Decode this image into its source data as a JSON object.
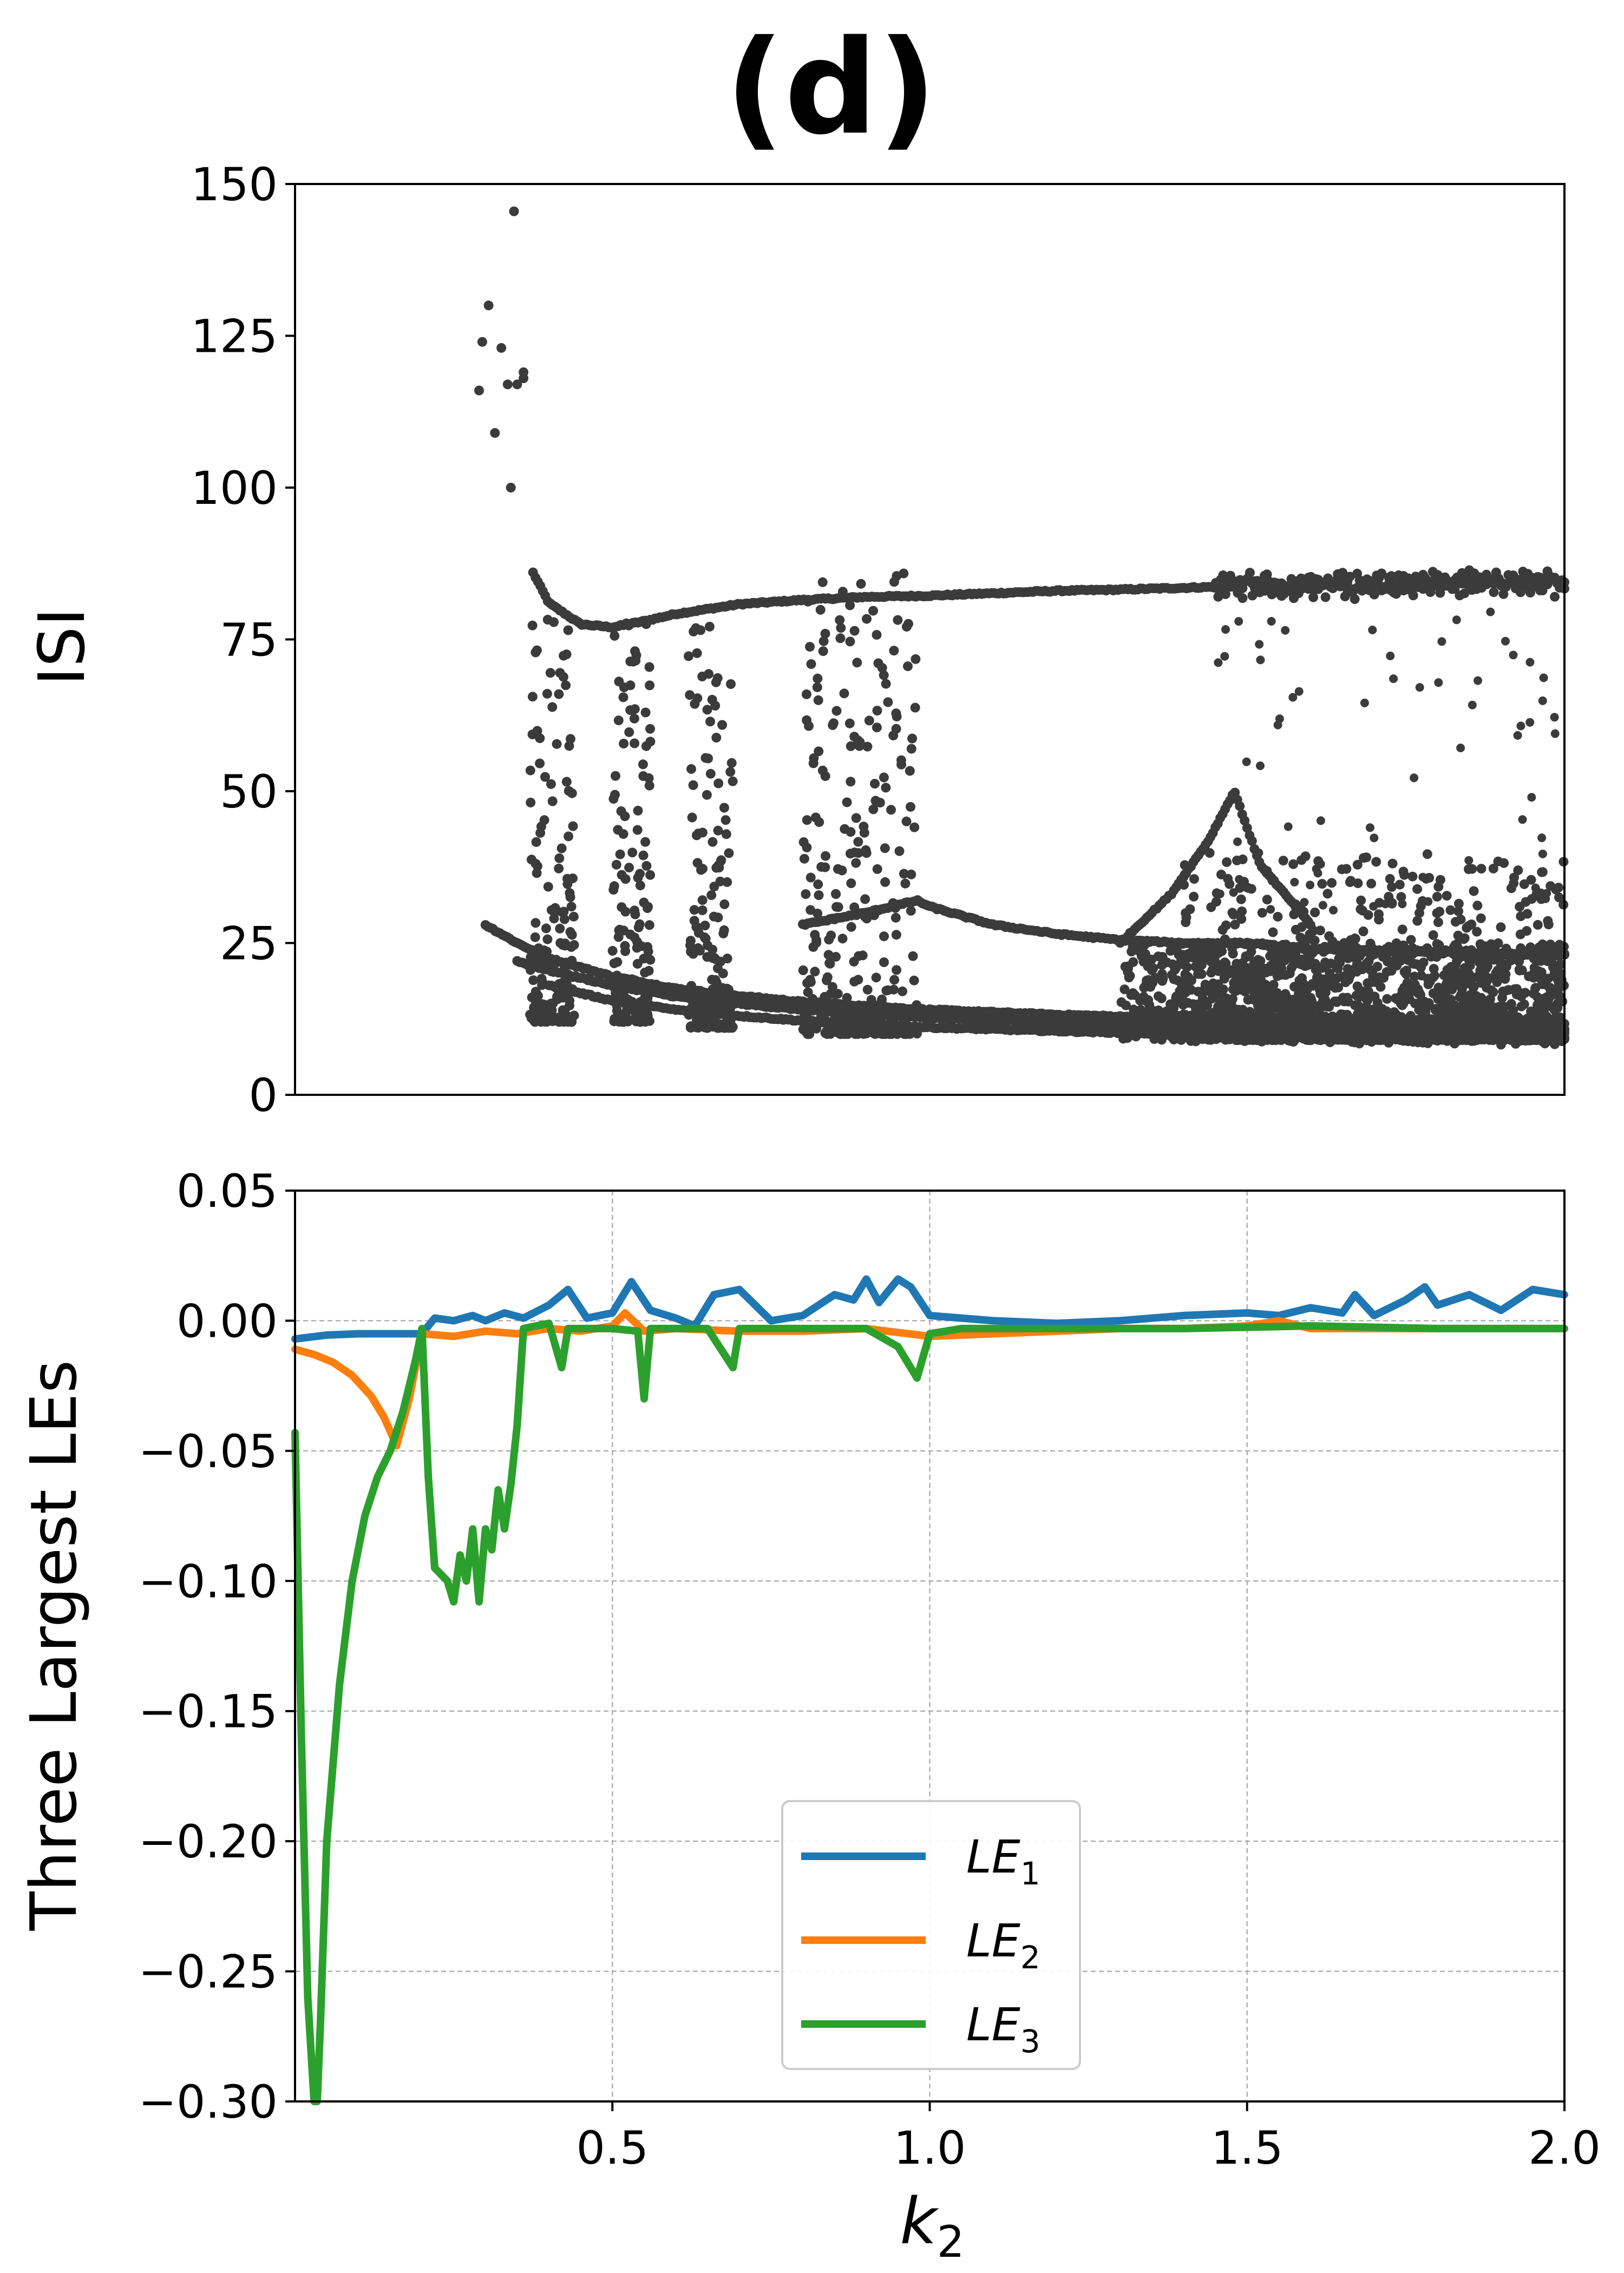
{
  "title": "(d)",
  "colors": {
    "le1": "#1f77b4",
    "le2": "#ff7f0e",
    "le3": "#2ca02c",
    "dots": "#3b3b3b",
    "grid": "#b0b0b0"
  },
  "chart_data": [
    {
      "type": "scatter",
      "ylabel": "ISI",
      "xlim": [
        0.0,
        2.0
      ],
      "ylim": [
        0,
        150
      ],
      "yticks": [
        "0",
        "25",
        "50",
        "75",
        "100",
        "125",
        "150"
      ],
      "grid": false,
      "branches": [
        {
          "name": "upper",
          "x": [
            0.375,
            0.4,
            0.45,
            0.5,
            0.55,
            0.6,
            0.65,
            0.7,
            0.8,
            0.9,
            1.0,
            1.1,
            1.2,
            1.3,
            1.4,
            1.5,
            1.6,
            1.7,
            1.8,
            1.9,
            2.0
          ],
          "y": [
            86,
            81,
            77.5,
            77,
            78,
            79.2,
            80,
            80.8,
            81.5,
            82,
            82.2,
            82.6,
            83,
            83.2,
            83.5,
            83.8,
            84,
            84,
            84.2,
            84.2,
            84.3
          ]
        },
        {
          "name": "lower-1",
          "x": [
            0.3,
            0.35,
            0.4,
            0.5,
            0.6,
            0.7,
            0.8,
            0.9,
            1.0,
            1.2,
            1.4,
            1.6,
            1.8,
            2.0
          ],
          "y": [
            28,
            25,
            22.5,
            19.5,
            17.5,
            16.3,
            15.3,
            14.6,
            14,
            13.2,
            12.6,
            12.2,
            11.8,
            11.5
          ]
        },
        {
          "name": "lower-2",
          "x": [
            0.35,
            0.4,
            0.5,
            0.6,
            0.7,
            0.8,
            0.9,
            1.0,
            1.2,
            1.4,
            1.6,
            1.8,
            2.0
          ],
          "y": [
            22,
            20.5,
            18,
            16.2,
            15,
            14,
            13.3,
            12.7,
            11.9,
            11.3,
            10.9,
            10.6,
            10.3
          ]
        },
        {
          "name": "lower-3",
          "x": [
            0.4,
            0.5,
            0.6,
            0.7,
            0.8,
            0.9,
            1.0,
            1.2,
            1.4,
            1.6,
            1.8,
            2.0
          ],
          "y": [
            18,
            15.5,
            14,
            13,
            12.2,
            11.6,
            11.1,
            10.5,
            10,
            9.7,
            9.5,
            9.3
          ]
        },
        {
          "name": "mid",
          "x": [
            0.8,
            0.9,
            0.98,
            1.0,
            1.1,
            1.2,
            1.3,
            1.4,
            1.5,
            1.6,
            1.8,
            2.0
          ],
          "y": [
            28,
            30,
            32,
            31,
            28,
            26.5,
            25.5,
            25,
            25,
            24,
            23.5,
            23
          ]
        },
        {
          "name": "hump",
          "x": [
            1.3,
            1.38,
            1.44,
            1.48,
            1.52,
            1.6
          ],
          "y": [
            25,
            33,
            42,
            50,
            38,
            28
          ]
        }
      ],
      "isolated_points": [
        [
          0.29,
          116
        ],
        [
          0.295,
          124
        ],
        [
          0.305,
          130
        ],
        [
          0.315,
          109
        ],
        [
          0.325,
          123
        ],
        [
          0.335,
          117
        ],
        [
          0.34,
          100
        ],
        [
          0.345,
          145.5
        ],
        [
          0.35,
          117
        ],
        [
          0.36,
          119
        ],
        [
          0.36,
          118
        ]
      ]
    },
    {
      "type": "line",
      "xlabel": "k_2",
      "xlabel_main": "k",
      "xlabel_sub": "2",
      "ylabel": "Three Largest LEs",
      "xlim": [
        0.0,
        2.0
      ],
      "ylim": [
        -0.3,
        0.05
      ],
      "xticks": [
        "0.5",
        "1.0",
        "1.5",
        "2.0"
      ],
      "yticks": [
        "0.05",
        "0.00",
        "−0.05",
        "−0.10",
        "−0.15",
        "−0.20",
        "−0.25",
        "−0.30"
      ],
      "grid": true,
      "legend": "lower-center",
      "series": [
        {
          "name": "LE_1",
          "label_main": "LE",
          "label_sub": "1",
          "x": [
            0.0,
            0.05,
            0.1,
            0.15,
            0.2,
            0.22,
            0.25,
            0.28,
            0.3,
            0.33,
            0.36,
            0.4,
            0.43,
            0.46,
            0.5,
            0.53,
            0.56,
            0.6,
            0.63,
            0.66,
            0.7,
            0.75,
            0.8,
            0.85,
            0.88,
            0.9,
            0.92,
            0.95,
            0.97,
            1.0,
            1.05,
            1.1,
            1.2,
            1.3,
            1.4,
            1.5,
            1.55,
            1.6,
            1.65,
            1.67,
            1.7,
            1.75,
            1.78,
            1.8,
            1.85,
            1.9,
            1.95,
            2.0
          ],
          "y": [
            -0.007,
            -0.0055,
            -0.005,
            -0.005,
            -0.005,
            0.001,
            0.0,
            0.002,
            0.0,
            0.003,
            0.001,
            0.006,
            0.012,
            0.001,
            0.003,
            0.015,
            0.004,
            0.001,
            -0.002,
            0.01,
            0.012,
            0.0,
            0.002,
            0.01,
            0.008,
            0.016,
            0.007,
            0.016,
            0.013,
            0.002,
            0.001,
            0.0,
            -0.001,
            0.0,
            0.002,
            0.003,
            0.002,
            0.005,
            0.003,
            0.01,
            0.002,
            0.008,
            0.013,
            0.006,
            0.01,
            0.004,
            0.012,
            0.01
          ]
        },
        {
          "name": "LE_2",
          "label_main": "LE",
          "label_sub": "2",
          "x": [
            0.0,
            0.03,
            0.06,
            0.09,
            0.12,
            0.14,
            0.16,
            0.18,
            0.2,
            0.25,
            0.3,
            0.35,
            0.4,
            0.45,
            0.5,
            0.52,
            0.55,
            0.6,
            0.7,
            0.8,
            0.9,
            1.0,
            1.1,
            1.2,
            1.3,
            1.4,
            1.5,
            1.55,
            1.6,
            1.7,
            1.8,
            1.9,
            2.0
          ],
          "y": [
            -0.011,
            -0.013,
            -0.016,
            -0.021,
            -0.029,
            -0.037,
            -0.048,
            -0.03,
            -0.005,
            -0.006,
            -0.004,
            -0.005,
            -0.003,
            -0.004,
            -0.002,
            0.003,
            -0.004,
            -0.003,
            -0.004,
            -0.004,
            -0.003,
            -0.006,
            -0.005,
            -0.004,
            -0.003,
            -0.003,
            -0.002,
            0.0,
            -0.003,
            -0.003,
            -0.003,
            -0.003,
            -0.003
          ]
        },
        {
          "name": "LE_3",
          "label_main": "LE",
          "label_sub": "3",
          "x": [
            0.0,
            0.01,
            0.02,
            0.03,
            0.035,
            0.04,
            0.05,
            0.07,
            0.09,
            0.11,
            0.13,
            0.15,
            0.17,
            0.19,
            0.2,
            0.21,
            0.22,
            0.24,
            0.25,
            0.26,
            0.27,
            0.28,
            0.29,
            0.3,
            0.31,
            0.32,
            0.33,
            0.34,
            0.35,
            0.36,
            0.38,
            0.4,
            0.42,
            0.43,
            0.45,
            0.5,
            0.54,
            0.55,
            0.56,
            0.6,
            0.65,
            0.69,
            0.7,
            0.72,
            0.8,
            0.9,
            0.95,
            0.98,
            1.0,
            1.05,
            1.1,
            1.2,
            1.4,
            1.6,
            1.8,
            2.0
          ],
          "y": [
            -0.043,
            -0.16,
            -0.26,
            -0.3,
            -0.3,
            -0.27,
            -0.2,
            -0.14,
            -0.1,
            -0.075,
            -0.06,
            -0.05,
            -0.035,
            -0.015,
            -0.003,
            -0.06,
            -0.095,
            -0.1,
            -0.108,
            -0.09,
            -0.1,
            -0.08,
            -0.108,
            -0.08,
            -0.088,
            -0.065,
            -0.08,
            -0.063,
            -0.04,
            -0.003,
            -0.002,
            -0.001,
            -0.018,
            -0.003,
            -0.003,
            -0.003,
            -0.004,
            -0.03,
            -0.003,
            -0.003,
            -0.003,
            -0.018,
            -0.003,
            -0.003,
            -0.003,
            -0.003,
            -0.01,
            -0.022,
            -0.005,
            -0.003,
            -0.003,
            -0.003,
            -0.003,
            -0.002,
            -0.003,
            -0.003
          ]
        }
      ]
    }
  ]
}
